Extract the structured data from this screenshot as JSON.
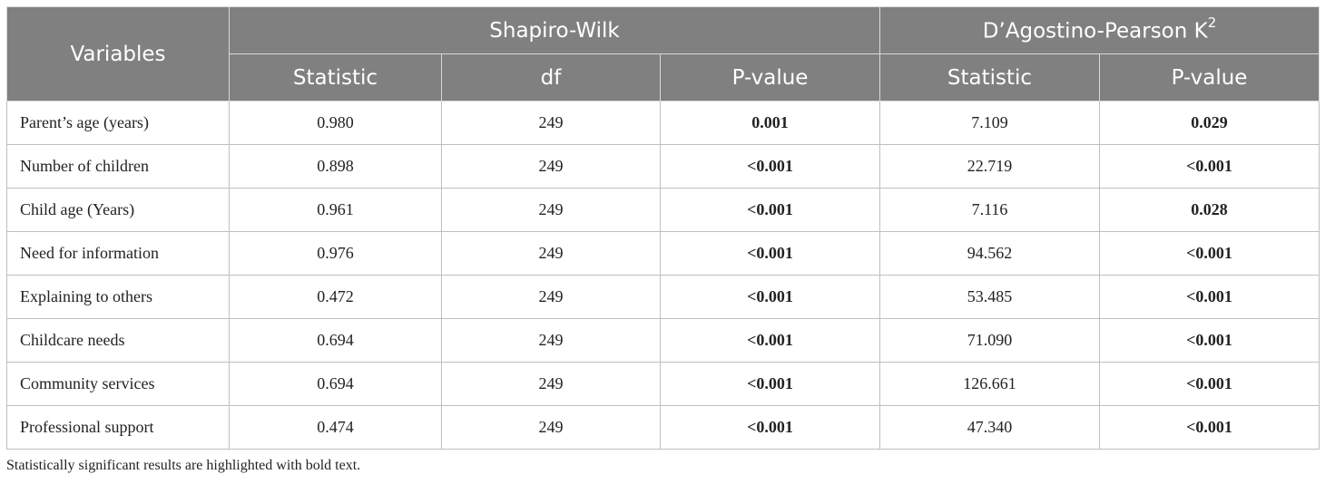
{
  "header": {
    "variables": "Variables",
    "group1": "Shapiro-Wilk",
    "group2_text": "D’Agostino-Pearson K",
    "group2_sup": "2",
    "sub": {
      "sw_statistic": "Statistic",
      "sw_df": "df",
      "sw_pvalue": "P-value",
      "dp_statistic": "Statistic",
      "dp_pvalue": "P-value"
    }
  },
  "rows": [
    {
      "variable": "Parent’s age (years)",
      "sw_stat": "0.980",
      "df": "249",
      "sw_p": "0.001",
      "dp_stat": "7.109",
      "dp_p": "0.029"
    },
    {
      "variable": "Number of children",
      "sw_stat": "0.898",
      "df": "249",
      "sw_p": "<0.001",
      "dp_stat": "22.719",
      "dp_p": "<0.001"
    },
    {
      "variable": "Child age (Years)",
      "sw_stat": "0.961",
      "df": "249",
      "sw_p": "<0.001",
      "dp_stat": "7.116",
      "dp_p": "0.028"
    },
    {
      "variable": "Need for information",
      "sw_stat": "0.976",
      "df": "249",
      "sw_p": "<0.001",
      "dp_stat": "94.562",
      "dp_p": "<0.001"
    },
    {
      "variable": "Explaining to others",
      "sw_stat": "0.472",
      "df": "249",
      "sw_p": "<0.001",
      "dp_stat": "53.485",
      "dp_p": "<0.001"
    },
    {
      "variable": "Childcare needs",
      "sw_stat": "0.694",
      "df": "249",
      "sw_p": "<0.001",
      "dp_stat": "71.090",
      "dp_p": "<0.001"
    },
    {
      "variable": "Community services",
      "sw_stat": "0.694",
      "df": "249",
      "sw_p": "<0.001",
      "dp_stat": "126.661",
      "dp_p": "<0.001"
    },
    {
      "variable": "Professional support",
      "sw_stat": "0.474",
      "df": "249",
      "sw_p": "<0.001",
      "dp_stat": "47.340",
      "dp_p": "<0.001"
    }
  ],
  "footnote": "Statistically significant results are highlighted with bold text.",
  "colors": {
    "header_bg": "#808080",
    "header_text": "#ffffff",
    "border": "#bfbfbf"
  }
}
